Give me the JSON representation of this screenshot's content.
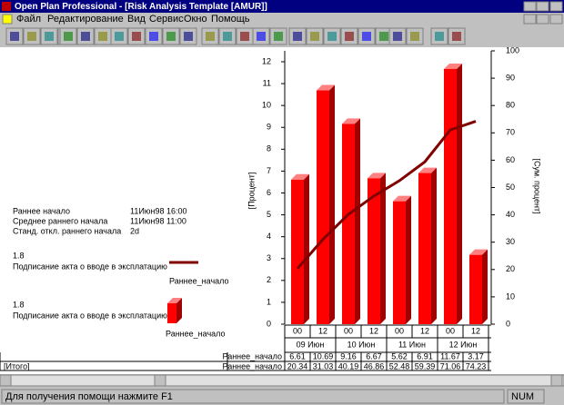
{
  "window": {
    "title": "Open Plan Professional - [Risk Analysis Template [AMUR]]",
    "menu": [
      "Файл",
      "Редактирование",
      "Вид",
      "Сервис",
      "Окно",
      "Помощь"
    ]
  },
  "info": {
    "rows": [
      [
        "Раннее начало",
        "11Июн98 16:00"
      ],
      [
        "Среднее раннего начала",
        "11Июн98 11:00"
      ],
      [
        "Станд. откл. раннего начала",
        "2d"
      ]
    ]
  },
  "legend": {
    "items": [
      {
        "id": "1.8",
        "task": "Подписание акта о вводе в эксплатацию"
      },
      {
        "id": "1.8",
        "task": "Подписание акта о вводе в эксплатацию"
      }
    ]
  },
  "chart_data": {
    "type": "bar",
    "ylabel": "[Процент]",
    "y2label": "[Сум. процент]",
    "categories": [
      "00",
      "12",
      "00",
      "12",
      "00",
      "12",
      "00",
      "12"
    ],
    "groups": [
      "09 Июн",
      "10 Июн",
      "11 Июн",
      "12 Июн"
    ],
    "series": [
      {
        "name": "Раннее_начало",
        "color": "#ff0000",
        "values": [
          6.61,
          10.69,
          9.16,
          6.67,
          5.62,
          6.91,
          11.67,
          3.17
        ]
      },
      {
        "name": "Раннее_начало",
        "color": "#800000",
        "axis": "y2",
        "type": "line",
        "values": [
          20.34,
          31.03,
          40.19,
          46.86,
          52.48,
          59.39,
          71.06,
          74.23
        ]
      }
    ],
    "ylim": [
      0,
      12
    ],
    "yticks": [
      0,
      1,
      2,
      3,
      4,
      5,
      6,
      7,
      8,
      9,
      10,
      11,
      12
    ],
    "y2lim": [
      0,
      100
    ],
    "y2ticks": [
      0,
      10,
      20,
      30,
      40,
      50,
      60,
      70,
      80,
      90,
      100
    ]
  },
  "table": {
    "total_label": "[Итого]"
  },
  "status": {
    "help": "Для получения помощи нажмите F1",
    "num": "NUM"
  }
}
